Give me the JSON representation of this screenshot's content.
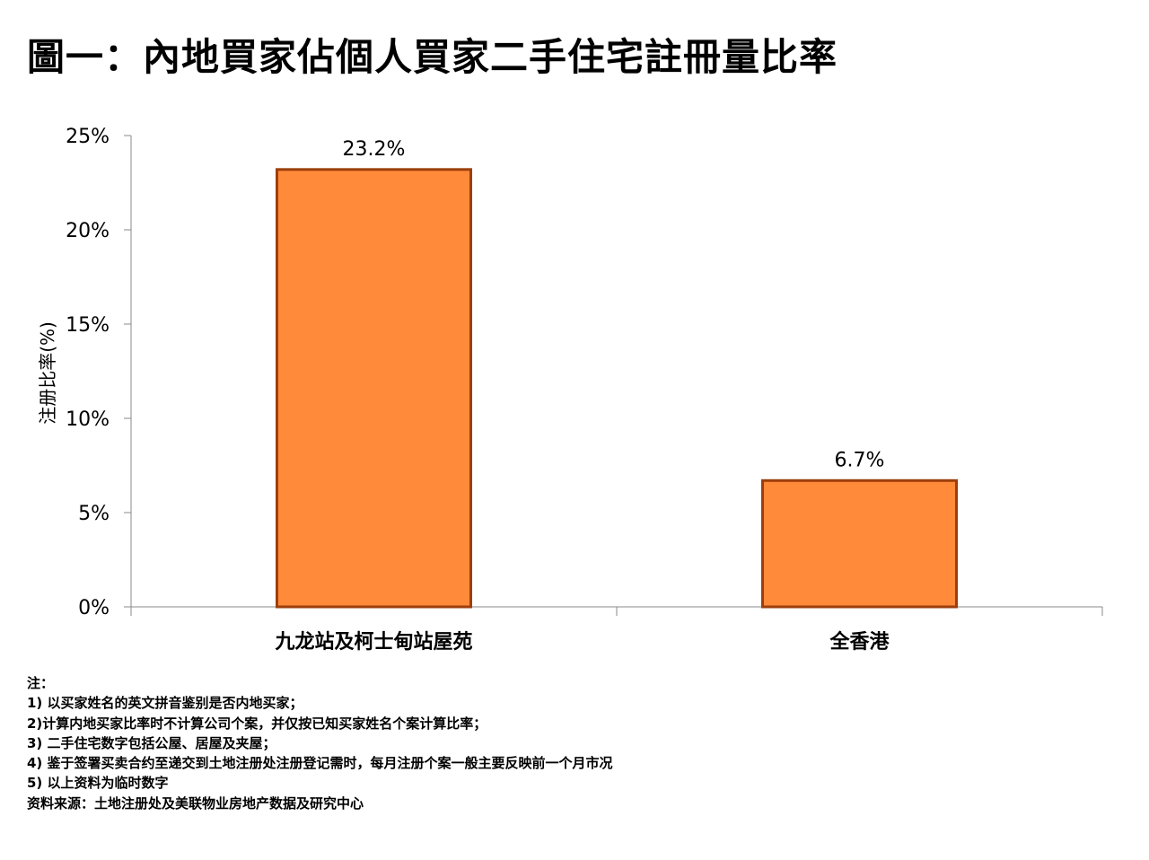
{
  "title": "圖一：內地買家佔個人買家二手住宅註冊量比率",
  "chart_data": {
    "type": "bar",
    "title": "圖一：內地買家佔個人買家二手住宅註冊量比率",
    "categories": [
      "九龙站及柯士甸站屋苑",
      "全香港"
    ],
    "values": [
      23.2,
      6.7
    ],
    "value_labels": [
      "23.2%",
      "6.7%"
    ],
    "xlabel": "",
    "ylabel": "注册比率(%)",
    "ylim": [
      0,
      25
    ],
    "yticks": [
      0,
      5,
      10,
      15,
      20,
      25
    ],
    "ytick_labels": [
      "0%",
      "5%",
      "10%",
      "15%",
      "20%",
      "25%"
    ],
    "grid": false,
    "legend": "none",
    "bar_color": "#FF8A3A",
    "bar_edge_color": "#9C3F0C"
  },
  "notes": {
    "heading": "注：",
    "items": [
      "1) 以买家姓名的英文拼音鉴别是否内地买家；",
      "2)计算内地买家比率时不计算公司个案，并仅按已知买家姓名个案计算比率；",
      "3) 二手住宅数字包括公屋、居屋及夹屋；",
      "4) 鉴于签署买卖合约至递交到土地注册处注册登记需时，每月注册个案一般主要反映前一个月市况",
      "5) 以上资料为临时数字"
    ],
    "source": "资料来源：土地注册处及美联物业房地产数据及研究中心"
  }
}
